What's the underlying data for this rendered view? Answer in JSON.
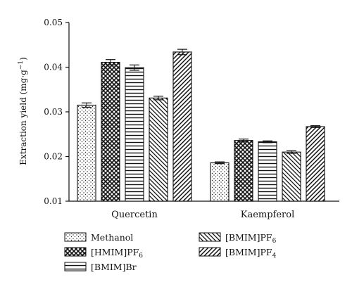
{
  "chart_data": {
    "type": "bar",
    "categories": [
      "Quercetin",
      "Kaempferol"
    ],
    "series": [
      {
        "name": "Methanol",
        "values": [
          0.0315,
          0.0186
        ],
        "errors": [
          0.0005,
          0.0002
        ],
        "pattern": "dots"
      },
      {
        "name": "[HMIM]PF6",
        "values": [
          0.0411,
          0.0236
        ],
        "errors": [
          0.0006,
          0.0003
        ],
        "pattern": "crosshatch"
      },
      {
        "name": "[BMIM]Br",
        "values": [
          0.0399,
          0.0233
        ],
        "errors": [
          0.0006,
          0.0002
        ],
        "pattern": "horizontal"
      },
      {
        "name": "[BMIM]PF6",
        "values": [
          0.0331,
          0.021
        ],
        "errors": [
          0.0004,
          0.0003
        ],
        "pattern": "diag-down"
      },
      {
        "name": "[BMIM]PF4",
        "values": [
          0.0434,
          0.0267
        ],
        "errors": [
          0.0006,
          0.0002
        ],
        "pattern": "diag-up"
      }
    ],
    "ylabel": "Extraction yield (mg·g",
    "ylabel_sup": "−1",
    "ylabel_suffix": ")",
    "ylim": [
      0.01,
      0.05
    ],
    "yticks": [
      "0.01",
      "0.02",
      "0.03",
      "0.04",
      "0.05"
    ],
    "legend_position": "bottom",
    "legend_labels": [
      {
        "base": "Methanol",
        "sub": ""
      },
      {
        "base": "[HMIM]PF",
        "sub": "6"
      },
      {
        "base": "[BMIM]Br",
        "sub": ""
      },
      {
        "base": "[BMIM]PF",
        "sub": "6"
      },
      {
        "base": "[BMIM]PF",
        "sub": "4"
      }
    ]
  }
}
